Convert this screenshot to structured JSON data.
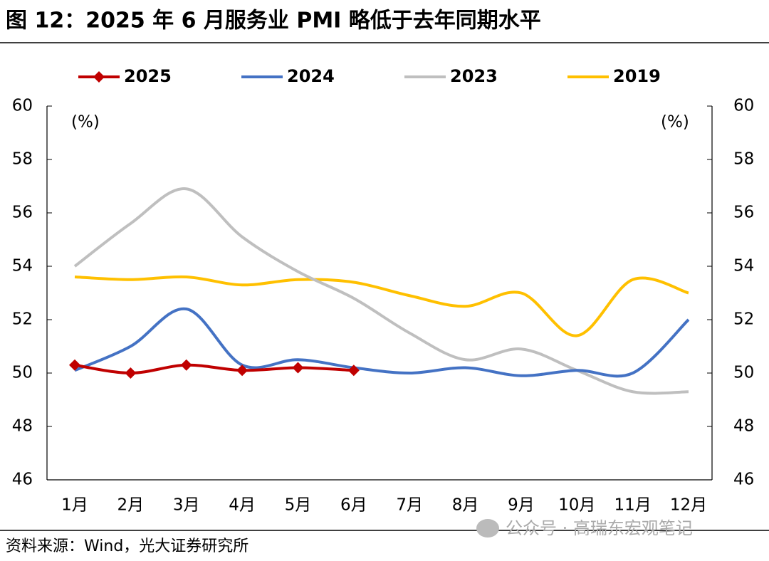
{
  "chart_data": {
    "type": "line",
    "title": "图 12：2025 年 6 月服务业 PMI 略低于去年同期水平",
    "y_unit": "(%)",
    "y2_unit": "(%)",
    "source": "资料来源：Wind，光大证券研究所",
    "watermark": "公众号 · 高瑞东宏观笔记",
    "categories": [
      "1月",
      "2月",
      "3月",
      "4月",
      "5月",
      "6月",
      "7月",
      "8月",
      "9月",
      "10月",
      "11月",
      "12月"
    ],
    "smooth": true,
    "series": [
      {
        "name": "2025",
        "color": "#c00000",
        "marker": "diamond",
        "values": [
          50.3,
          50.0,
          50.3,
          50.1,
          50.2,
          50.1,
          null,
          null,
          null,
          null,
          null,
          null
        ]
      },
      {
        "name": "2024",
        "color": "#4472c4",
        "values": [
          50.1,
          51.0,
          52.4,
          50.3,
          50.5,
          50.2,
          50.0,
          50.2,
          49.9,
          50.1,
          50.0,
          52.0
        ]
      },
      {
        "name": "2023",
        "color": "#bfbfbf",
        "values": [
          54.0,
          55.6,
          56.9,
          55.1,
          53.8,
          52.8,
          51.5,
          50.5,
          50.9,
          50.1,
          49.3,
          49.3
        ]
      },
      {
        "name": "2019",
        "color": "#ffc000",
        "values": [
          53.6,
          53.5,
          53.6,
          53.3,
          53.5,
          53.4,
          52.9,
          52.5,
          53.0,
          51.4,
          53.5,
          53.0
        ]
      }
    ],
    "ylim": [
      46,
      60
    ],
    "yticks": [
      46,
      48,
      50,
      52,
      54,
      56,
      58,
      60
    ],
    "y2lim": [
      46,
      60
    ],
    "y2ticks": [
      46,
      48,
      50,
      52,
      54,
      56,
      58,
      60
    ],
    "legend": "top"
  }
}
